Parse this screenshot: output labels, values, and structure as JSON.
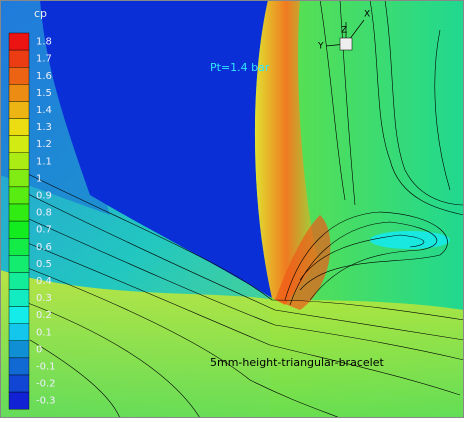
{
  "legend": {
    "title": "cp",
    "labels": [
      "1.8",
      "1.7",
      "1.6",
      "1.5",
      "1.4",
      "1.3",
      "1.2",
      "1.1",
      "1",
      "0.9",
      "0.8",
      "0.7",
      "0.6",
      "0.5",
      "0.4",
      "0.3",
      "0.2",
      "0.1",
      "0",
      "-0.1",
      "-0.2",
      "-0.3"
    ]
  },
  "annotations": {
    "pressure": "Pt=1.4 bar",
    "bracelet": "5mm-height-triangular-bracelet"
  },
  "axes_triad": {
    "z": "Z",
    "x": "X",
    "y": "Y"
  }
}
